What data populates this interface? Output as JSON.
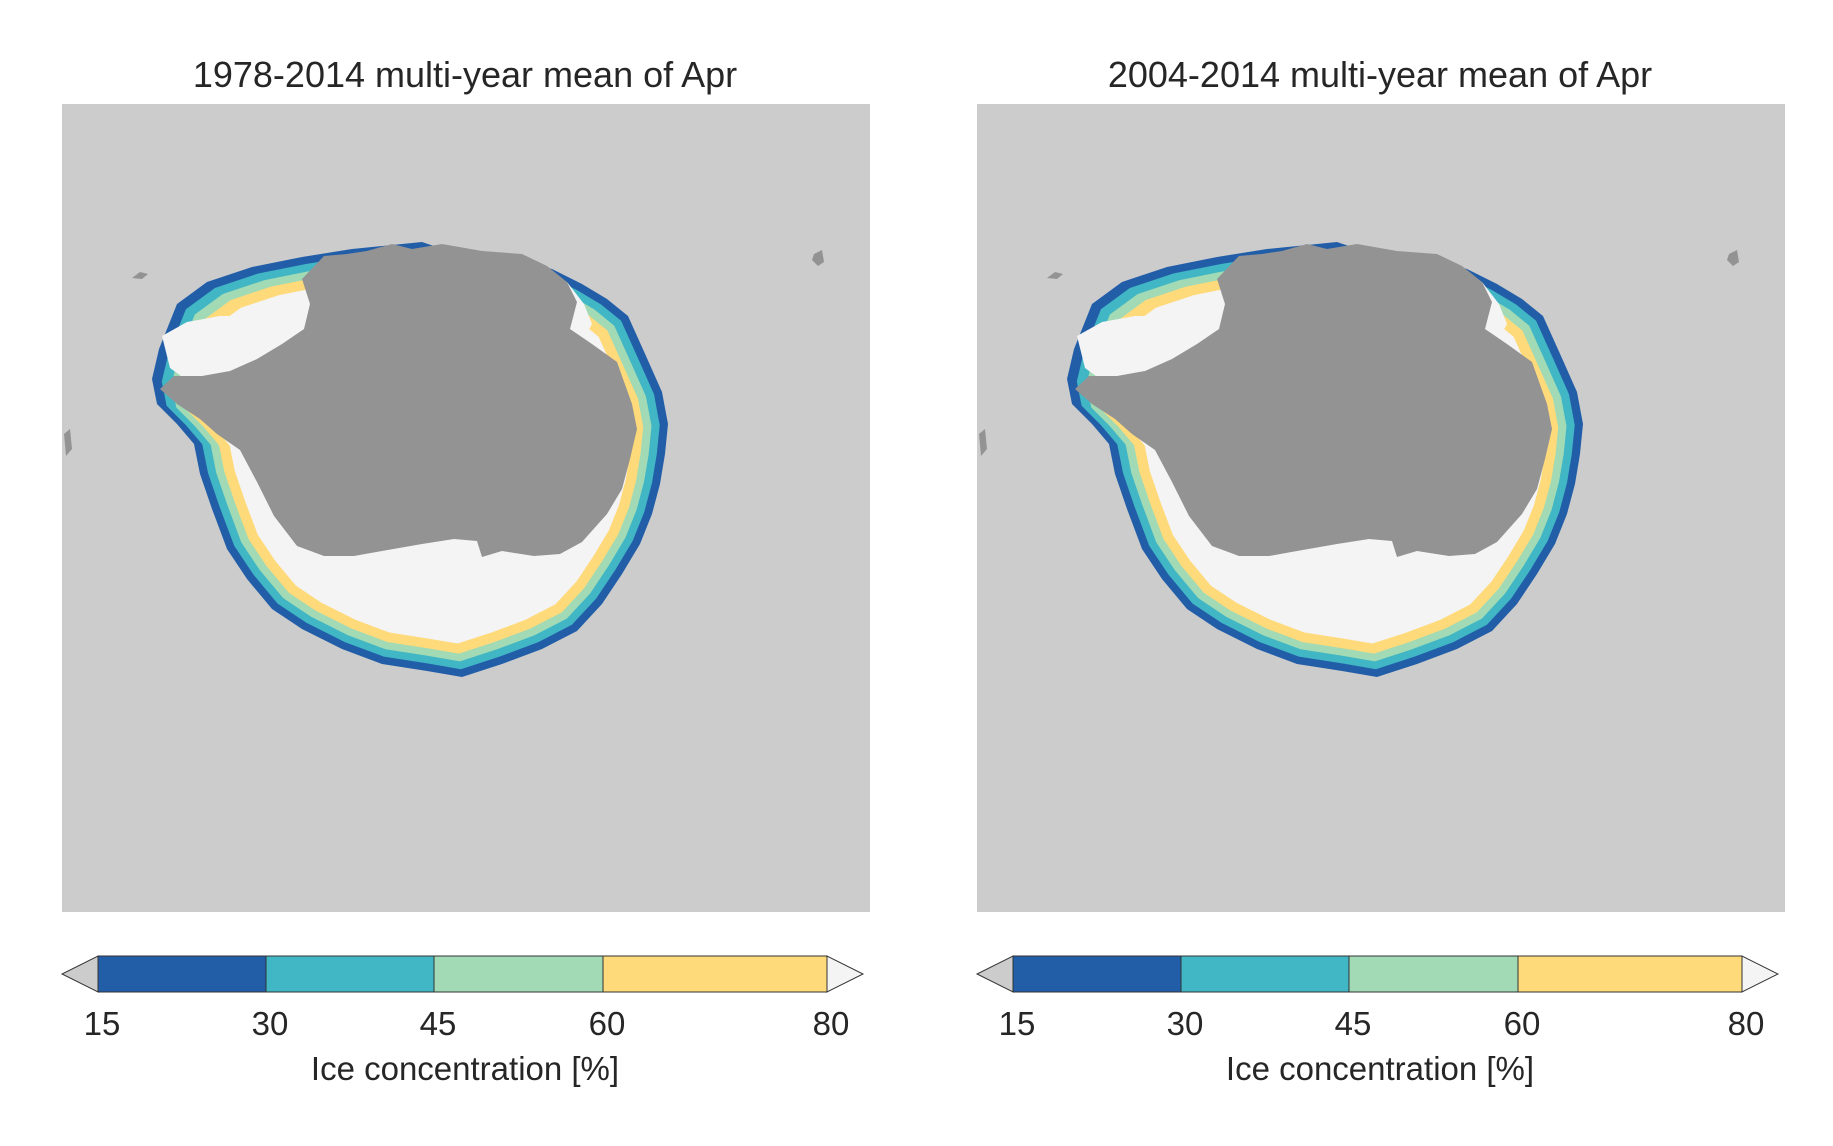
{
  "colors": {
    "ocean": "#cccccc",
    "land": "#939393",
    "under": "#cccccc",
    "over": "#f4f4f4",
    "c15_30": "#225ea8",
    "c30_45": "#41b6c4",
    "c45_60": "#a1dab4",
    "c60_80": "#ffda7b"
  },
  "colorbar": {
    "ticks": [
      "15",
      "30",
      "45",
      "60",
      "80"
    ],
    "label": "Ice concentration [%]"
  },
  "panels": [
    {
      "title": "1978-2014 multi-year mean of Apr"
    },
    {
      "title": "2004-2014 multi-year mean of Apr"
    }
  ]
}
